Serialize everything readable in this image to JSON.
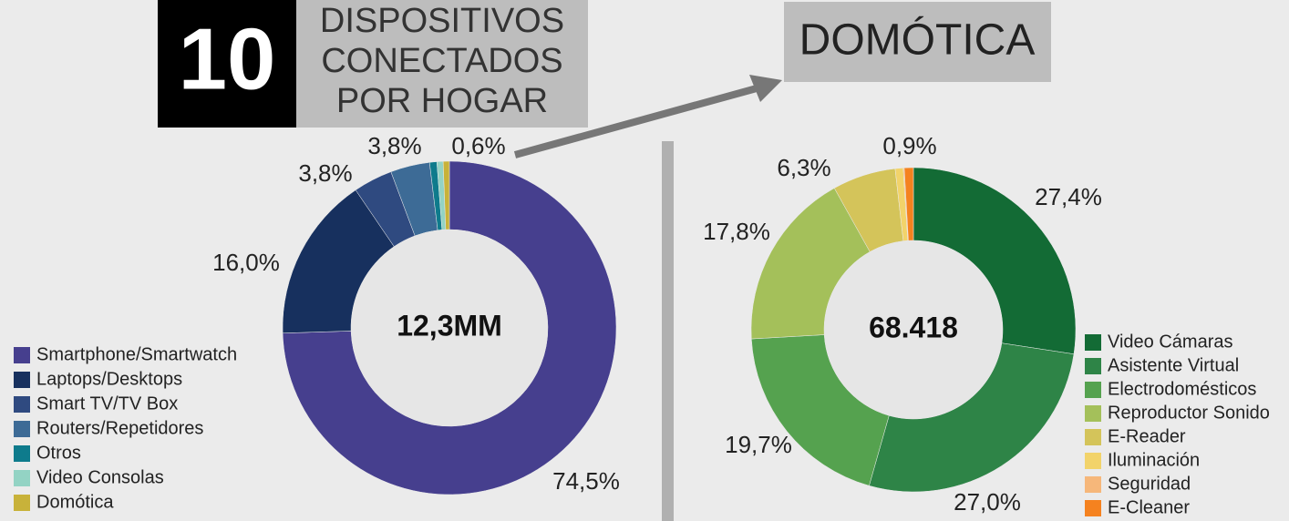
{
  "header": {
    "number": "10",
    "title_lines": [
      "DISPOSITIVOS",
      "CONECTADOS",
      "POR HOGAR"
    ],
    "callout": "DOMÓTICA"
  },
  "chart_data": [
    {
      "type": "pie",
      "donut": true,
      "center_label": "12,3MM",
      "legend": "bottom-left",
      "categories": [
        "Smartphone/Smartwatch",
        "Laptops/Desktops",
        "Smart TV/TV Box",
        "Routers/Repetidores",
        "Otros",
        "Video Consolas",
        "Domótica"
      ],
      "values": [
        74.5,
        16.0,
        3.8,
        3.8,
        0.7,
        0.6,
        0.6
      ],
      "value_labels": [
        "74,5%",
        "16,0%",
        "3,8%",
        "3,8%",
        null,
        null,
        "0,6%"
      ],
      "colors": [
        "#463f8e",
        "#17305e",
        "#2f4a80",
        "#3d6b96",
        "#0e7b8c",
        "#93d3c4",
        "#c8b23a"
      ]
    },
    {
      "type": "pie",
      "donut": true,
      "center_label": "68.418",
      "legend": "right",
      "categories": [
        "Video Cámaras",
        "Asistente Virtual",
        "Electrodomésticos",
        "Reproductor Sonido",
        "E-Reader",
        "Iluminación",
        "Seguridad",
        "E-Cleaner"
      ],
      "values": [
        27.4,
        27.0,
        19.7,
        17.8,
        6.3,
        0.8,
        0.1,
        0.9
      ],
      "value_labels": [
        "27,4%",
        "27,0%",
        "19,7%",
        "17,8%",
        "6,3%",
        null,
        null,
        "0,9%"
      ],
      "colors": [
        "#136b35",
        "#2e8447",
        "#55a24f",
        "#a4c05a",
        "#d4c45a",
        "#f2d36a",
        "#f6b77a",
        "#f5821f"
      ]
    }
  ]
}
